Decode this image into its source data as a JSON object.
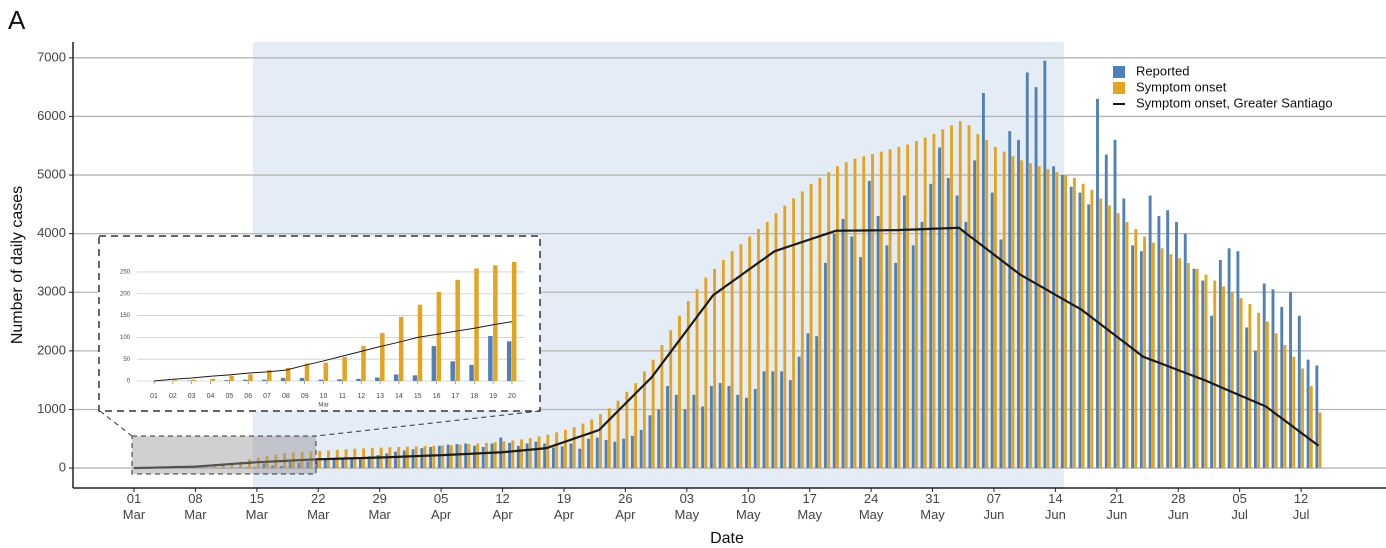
{
  "chart_data": {
    "type": "bar",
    "panel_label": "A",
    "x_label": "Date",
    "y_label": "Number of daily cases",
    "categories": [
      "01 Mar",
      null,
      null,
      null,
      null,
      null,
      null,
      "08 Mar",
      null,
      null,
      null,
      null,
      null,
      null,
      "15 Mar",
      null,
      null,
      null,
      null,
      null,
      null,
      "22 Mar",
      null,
      null,
      null,
      null,
      null,
      null,
      "29 Mar",
      null,
      null,
      null,
      null,
      null,
      null,
      "05 Apr",
      null,
      null,
      null,
      null,
      null,
      null,
      "12 Apr",
      null,
      null,
      null,
      null,
      null,
      null,
      "19 Apr",
      null,
      null,
      null,
      null,
      null,
      null,
      "26 Apr",
      null,
      null,
      null,
      null,
      null,
      null,
      "03 May",
      null,
      null,
      null,
      null,
      null,
      null,
      "10 May",
      null,
      null,
      null,
      null,
      null,
      null,
      "17 May",
      null,
      null,
      null,
      null,
      null,
      null,
      "24 May",
      null,
      null,
      null,
      null,
      null,
      null,
      "31 May",
      null,
      null,
      null,
      null,
      null,
      null,
      "07 Jun",
      null,
      null,
      null,
      null,
      null,
      null,
      "14 Jun",
      null,
      null,
      null,
      null,
      null,
      null,
      "21 Jun",
      null,
      null,
      null,
      null,
      null,
      null,
      "28 Jun",
      null,
      null,
      null,
      null,
      null,
      null,
      "05 Jul",
      null,
      null,
      null,
      null,
      null,
      null,
      "12 Jul",
      null,
      null
    ],
    "series": [
      {
        "name": "Reported",
        "color": "#4f81b8",
        "values": [
          0,
          0,
          1,
          0,
          2,
          3,
          3,
          7,
          7,
          3,
          4,
          5,
          8,
          15,
          13,
          80,
          45,
          37,
          103,
          91,
          110,
          120,
          140,
          150,
          160,
          170,
          180,
          200,
          220,
          250,
          280,
          300,
          320,
          340,
          360,
          380,
          400,
          410,
          420,
          380,
          360,
          420,
          520,
          430,
          380,
          420,
          450,
          420,
          350,
          370,
          420,
          330,
          500,
          520,
          480,
          450,
          500,
          550,
          650,
          900,
          1000,
          1400,
          1250,
          1000,
          1250,
          1050,
          1400,
          1450,
          1400,
          1250,
          1200,
          1350,
          1650,
          1650,
          1650,
          1500,
          1900,
          2300,
          2250,
          3500,
          4000,
          4250,
          3950,
          3600,
          4900,
          4300,
          3800,
          3500,
          4650,
          3800,
          4200,
          4850,
          5470,
          4950,
          4650,
          4200,
          5250,
          6400,
          4700,
          3900,
          5750,
          5600,
          6750,
          6500,
          6950,
          5150,
          5000,
          4800,
          4700,
          4500,
          6300,
          5350,
          5600,
          4600,
          3800,
          3700,
          4650,
          4300,
          4400,
          4200,
          4000,
          3400,
          3200,
          2600,
          3550,
          3750,
          3700,
          2400,
          2000,
          3150,
          3050,
          2750,
          3000,
          2600,
          1850,
          1750
        ]
      },
      {
        "name": "Symptom onset",
        "color": "#e3a51f",
        "values": [
          1,
          2,
          3,
          5,
          12,
          15,
          25,
          30,
          40,
          42,
          55,
          80,
          110,
          147,
          175,
          204,
          232,
          258,
          265,
          273,
          285,
          295,
          300,
          310,
          320,
          330,
          335,
          345,
          350,
          355,
          360,
          365,
          370,
          375,
          380,
          385,
          390,
          400,
          410,
          420,
          430,
          440,
          455,
          470,
          490,
          510,
          540,
          570,
          610,
          650,
          700,
          760,
          830,
          920,
          1020,
          1150,
          1300,
          1450,
          1650,
          1850,
          2100,
          2350,
          2600,
          2850,
          3050,
          3250,
          3400,
          3550,
          3700,
          3820,
          3950,
          4080,
          4200,
          4350,
          4480,
          4600,
          4720,
          4850,
          4950,
          5050,
          5150,
          5220,
          5280,
          5320,
          5360,
          5400,
          5440,
          5480,
          5520,
          5580,
          5640,
          5700,
          5780,
          5850,
          5920,
          5850,
          5700,
          5600,
          5480,
          5400,
          5320,
          5250,
          5200,
          5150,
          5100,
          5050,
          5000,
          4950,
          4850,
          4750,
          4600,
          4480,
          4350,
          4200,
          4080,
          3950,
          3850,
          3750,
          3650,
          3580,
          3500,
          3400,
          3300,
          3200,
          3100,
          3000,
          2900,
          2800,
          2650,
          2500,
          2300,
          2100,
          1900,
          1700,
          1400,
          950
        ]
      },
      {
        "name": "Symptom onset, Greater Santiago",
        "type": "line",
        "color": "#1a1a1a",
        "values": [
          0,
          4,
          7,
          11,
          14,
          18,
          21,
          25,
          36,
          46,
          57,
          68,
          79,
          89,
          100,
          107,
          114,
          121,
          129,
          136,
          143,
          150,
          154,
          159,
          163,
          167,
          171,
          176,
          180,
          186,
          191,
          197,
          203,
          209,
          214,
          220,
          227,
          234,
          241,
          249,
          256,
          263,
          270,
          284,
          298,
          312,
          326,
          340,
          392,
          443,
          495,
          547,
          598,
          650,
          800,
          950,
          1100,
          1250,
          1400,
          1550,
          1750,
          1950,
          2150,
          2350,
          2550,
          2750,
          2950,
          3057,
          3164,
          3271,
          3379,
          3486,
          3593,
          3700,
          3750,
          3800,
          3850,
          3900,
          3950,
          4000,
          4050,
          4051,
          4053,
          4054,
          4056,
          4057,
          4059,
          4060,
          4066,
          4071,
          4077,
          4083,
          4089,
          4094,
          4100,
          3986,
          3871,
          3757,
          3643,
          3529,
          3414,
          3300,
          3214,
          3129,
          3043,
          2957,
          2871,
          2786,
          2700,
          2586,
          2471,
          2357,
          2243,
          2129,
          2014,
          1900,
          1843,
          1786,
          1729,
          1671,
          1614,
          1557,
          1500,
          1436,
          1371,
          1307,
          1243,
          1179,
          1114,
          1050,
          938,
          827,
          715,
          603,
          492,
          380
        ]
      }
    ],
    "ylim": [
      -340,
      7270
    ],
    "yticks": [
      0,
      1000,
      2000,
      3000,
      4000,
      5000,
      6000,
      7000
    ],
    "grid": true,
    "legend": "top-right",
    "inset": {
      "categories": [
        "01",
        "02",
        "03",
        "04",
        "05",
        "06",
        "07",
        "08",
        "09",
        "10",
        "11",
        "12",
        "13",
        "14",
        "15",
        "16",
        "17",
        "18",
        "19",
        "20"
      ],
      "month_label": "Mar",
      "ylim": [
        0,
        282
      ],
      "yticks": [
        0,
        50,
        100,
        150,
        200,
        250
      ],
      "grid": true
    }
  }
}
